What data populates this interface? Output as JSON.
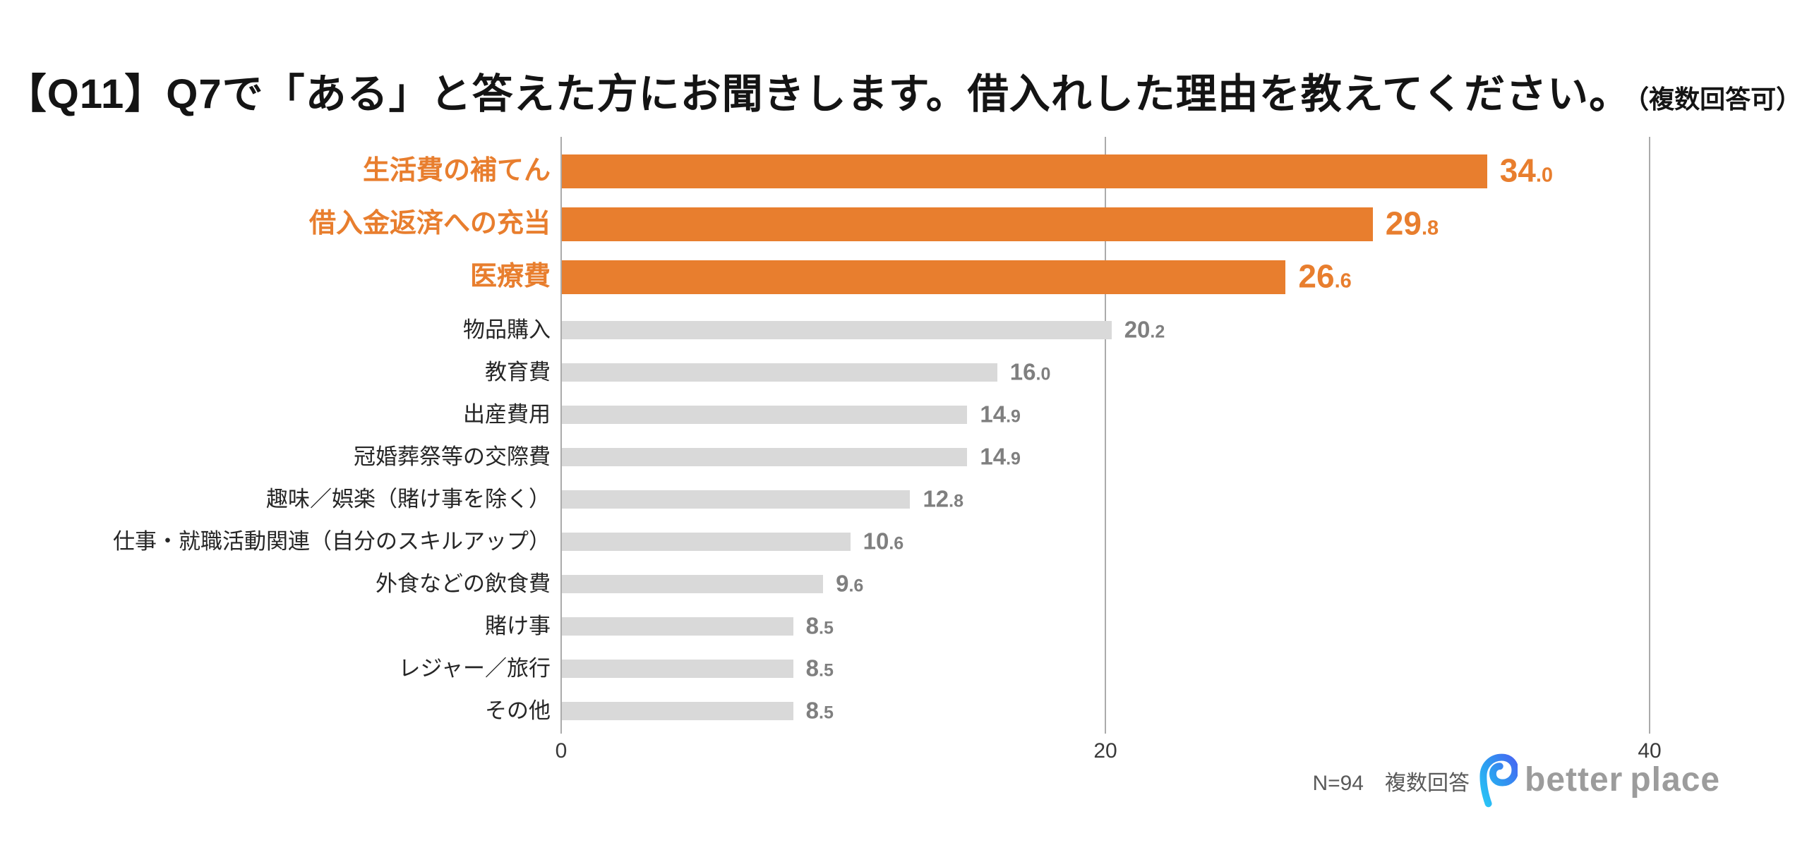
{
  "header": {
    "title_main": "【Q11】Q7で「ある」と答えた方にお聞きします。借入れした理由を教えてください。",
    "title_suffix": "（複数回答可）"
  },
  "chart_data": {
    "type": "bar",
    "orientation": "horizontal",
    "title": "【Q11】Q7で「ある」と答えた方にお聞きします。借入れした理由を教えてください。（複数回答可）",
    "categories": [
      "生活費の補てん",
      "借入金返済への充当",
      "医療費",
      "物品購入",
      "教育費",
      "出産費用",
      "冠婚葬祭等の交際費",
      "趣味／娯楽（賭け事を除く）",
      "仕事・就職活動関連（自分のスキルアップ）",
      "外食などの飲食費",
      "賭け事",
      "レジャー／旅行",
      "その他"
    ],
    "values": [
      34.0,
      29.8,
      26.6,
      20.2,
      16.0,
      14.9,
      14.9,
      12.8,
      10.6,
      9.6,
      8.5,
      8.5,
      8.5
    ],
    "highlighted_count": 3,
    "xlim": [
      0,
      40
    ],
    "xticks": [
      0,
      20,
      40
    ],
    "grid": true,
    "legend": false,
    "colors": {
      "bar_highlight": "#E87E2E",
      "bar_default": "#D9D9D9",
      "value_label_highlight": "#E87E2E",
      "value_label_default": "#7F7F7F",
      "category_label_highlight": "#E87E2E",
      "category_label_default": "#262626",
      "gridline": "#ABABAB",
      "tick_label": "#3A3A3A"
    }
  },
  "footer": {
    "note": "N=94　複数回答",
    "logo": {
      "word1": "better",
      "word2": "place",
      "text_color": "#9C9C9C",
      "icon_color_top": "#4667F2",
      "icon_color_mid": "#2E9BF0",
      "icon_color_bottom": "#29C5F6"
    }
  }
}
